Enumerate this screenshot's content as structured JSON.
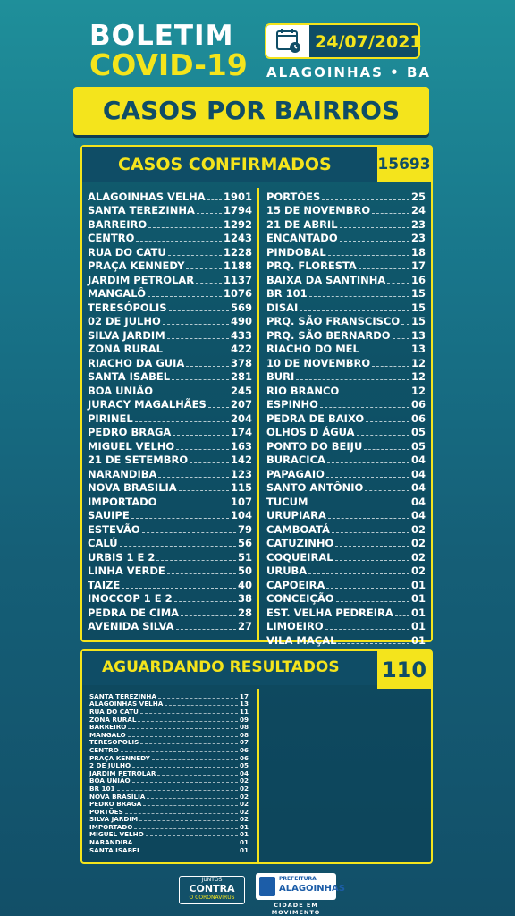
{
  "header": {
    "title": "BOLETIM",
    "subtitle": "COVID-19",
    "date": "24/07/2021",
    "city": "ALAGOINHAS • BA",
    "banner": "CASOS POR BAIRROS",
    "calendar_icon": "calendar-icon"
  },
  "confirmed": {
    "title": "CASOS CONFIRMADOS",
    "total": "15693",
    "left": [
      {
        "name": "ALAGOINHAS VELHA",
        "value": "1901"
      },
      {
        "name": "SANTA TEREZINHA",
        "value": "1794"
      },
      {
        "name": "BARREIRO",
        "value": "1292"
      },
      {
        "name": "CENTRO",
        "value": "1243"
      },
      {
        "name": "RUA DO CATU",
        "value": "1228"
      },
      {
        "name": "PRAÇA KENNEDY",
        "value": "1188"
      },
      {
        "name": "JARDIM PETROLAR",
        "value": "1137"
      },
      {
        "name": "MANGALÔ",
        "value": "1076"
      },
      {
        "name": "TERESÓPOLIS",
        "value": "569"
      },
      {
        "name": "02 DE JULHO",
        "value": "490"
      },
      {
        "name": "SILVA JARDIM",
        "value": "433"
      },
      {
        "name": "ZONA RURAL",
        "value": "422"
      },
      {
        "name": "RIACHO DA GUIA",
        "value": "378"
      },
      {
        "name": "SANTA ISABEL",
        "value": "281"
      },
      {
        "name": "BOA UNIÃO",
        "value": "245"
      },
      {
        "name": "JURACY MAGALHÃES",
        "value": "207"
      },
      {
        "name": "PIRINEL",
        "value": "204"
      },
      {
        "name": "PEDRO BRAGA",
        "value": "174"
      },
      {
        "name": "MIGUEL VELHO",
        "value": "163"
      },
      {
        "name": "21 DE SETEMBRO",
        "value": "142"
      },
      {
        "name": "NARANDIBA",
        "value": "123"
      },
      {
        "name": "NOVA BRASILIA",
        "value": "115"
      },
      {
        "name": "IMPORTADO",
        "value": "107"
      },
      {
        "name": "SAUIPE",
        "value": "104"
      },
      {
        "name": "ESTEVÃO",
        "value": "79"
      },
      {
        "name": "CALÚ",
        "value": "56"
      },
      {
        "name": "URBIS 1 E 2",
        "value": "51"
      },
      {
        "name": "LINHA VERDE",
        "value": "50"
      },
      {
        "name": "TAIZE",
        "value": "40"
      },
      {
        "name": "INOCCOP 1 E 2",
        "value": "38"
      },
      {
        "name": "PEDRA DE CIMA",
        "value": "28"
      },
      {
        "name": "AVENIDA SILVA",
        "value": "27"
      }
    ],
    "right": [
      {
        "name": "PORTÕES",
        "value": "25"
      },
      {
        "name": "15 DE NOVEMBRO",
        "value": "24"
      },
      {
        "name": "21 DE ABRIL",
        "value": "23"
      },
      {
        "name": "ENCANTADO",
        "value": "23"
      },
      {
        "name": "PINDOBAL",
        "value": "18"
      },
      {
        "name": "PRQ. FLORESTA",
        "value": "17"
      },
      {
        "name": "BAIXA DA SANTINHA",
        "value": "16"
      },
      {
        "name": "BR 101",
        "value": "15"
      },
      {
        "name": "DISAI",
        "value": "15"
      },
      {
        "name": "PRQ. SÃO FRANSCISCO",
        "value": "15"
      },
      {
        "name": "PRQ. SÃO BERNARDO",
        "value": "13"
      },
      {
        "name": "RIACHO DO MEL",
        "value": "13"
      },
      {
        "name": "10 DE NOVEMBRO",
        "value": "12"
      },
      {
        "name": "BURI",
        "value": "12"
      },
      {
        "name": "RIO BRANCO",
        "value": "12"
      },
      {
        "name": "ESPINHO",
        "value": "06"
      },
      {
        "name": "PEDRA DE BAIXO",
        "value": "06"
      },
      {
        "name": "OLHOS D ÁGUA",
        "value": "05"
      },
      {
        "name": "PONTO DO BEIJU",
        "value": "05"
      },
      {
        "name": "BURACICA",
        "value": "04"
      },
      {
        "name": "PAPAGAIO",
        "value": "04"
      },
      {
        "name": "SANTO ANTÔNIO",
        "value": "04"
      },
      {
        "name": "TUCUM",
        "value": "04"
      },
      {
        "name": "URUPIARA",
        "value": "04"
      },
      {
        "name": "CAMBOATÁ",
        "value": "02"
      },
      {
        "name": "CATUZINHO",
        "value": "02"
      },
      {
        "name": "COQUEIRAL",
        "value": "02"
      },
      {
        "name": "URUBA",
        "value": "02"
      },
      {
        "name": "CAPOEIRA",
        "value": "01"
      },
      {
        "name": "CONCEIÇÃO",
        "value": "01"
      },
      {
        "name": "EST. VELHA PEDREIRA",
        "value": "01"
      },
      {
        "name": "LIMOEIRO",
        "value": "01"
      },
      {
        "name": "VILA MAÇAL",
        "value": "01"
      }
    ]
  },
  "awaiting": {
    "title": "AGUARDANDO RESULTADOS",
    "total": "110",
    "items": [
      {
        "name": "SANTA TEREZINHA",
        "value": "17"
      },
      {
        "name": "ALAGOINHAS VELHA",
        "value": "13"
      },
      {
        "name": "RUA DO CATU",
        "value": "11"
      },
      {
        "name": "ZONA RURAL",
        "value": "09"
      },
      {
        "name": "BARREIRO",
        "value": "08"
      },
      {
        "name": "MANGALO",
        "value": "08"
      },
      {
        "name": "TERESOPOLIS",
        "value": "07"
      },
      {
        "name": "CENTRO",
        "value": "06"
      },
      {
        "name": "PRAÇA KENNEDY",
        "value": "06"
      },
      {
        "name": "2 DE JULHO",
        "value": "05"
      },
      {
        "name": "JARDIM PETROLAR",
        "value": "04"
      },
      {
        "name": "BOA UNIÃO",
        "value": "02"
      },
      {
        "name": "BR 101",
        "value": "02"
      },
      {
        "name": "NOVA BRASÍLIA",
        "value": "02"
      },
      {
        "name": "PEDRO BRAGA",
        "value": "02"
      },
      {
        "name": "PORTÕES",
        "value": "02"
      },
      {
        "name": "SILVA JARDIM",
        "value": "02"
      },
      {
        "name": "IMPORTADO",
        "value": "01"
      },
      {
        "name": "MIGUEL VELHO",
        "value": "01"
      },
      {
        "name": "NARANDIBA",
        "value": "01"
      },
      {
        "name": "SANTA ISABEL",
        "value": "01"
      }
    ]
  },
  "footer": {
    "logo1_top": "JUNTOS",
    "logo1_main": "CONTRA",
    "logo1_sub": "O CORONAVIRUS",
    "logo2_pref": "PREFEITURA",
    "logo2_city": "ALAGOINHAS",
    "logo2_slogan": "CIDADE EM MOVIMENTO"
  }
}
